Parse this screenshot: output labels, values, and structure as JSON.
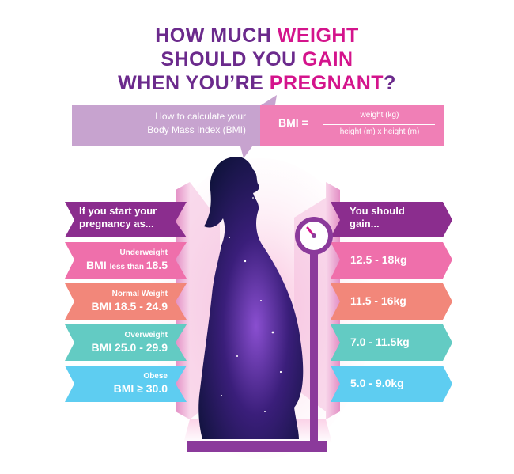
{
  "title": {
    "line1_a": "HOW MUCH ",
    "line1_b": "WEIGHT",
    "line2_a": "SHOULD YOU ",
    "line2_b": "GAIN",
    "line3_a": "WHEN YOU’RE ",
    "line3_b": "PREGNANT",
    "line3_c": "?"
  },
  "calc": {
    "line1": "How to calculate your",
    "line2": "Body Mass Index (BMI)"
  },
  "formula": {
    "label": "BMI =",
    "numerator": "weight (kg)",
    "denominator": "height (m) x height (m)"
  },
  "left_header": {
    "line1": "If you start your",
    "line2": "pregnancy as..."
  },
  "right_header": {
    "line1": "You should",
    "line2": "gain..."
  },
  "rows": [
    {
      "category": "Underweight",
      "range_prefix": "BMI ",
      "range_mid": "less than ",
      "range_suffix": "18.5",
      "gain": "12.5 - 18kg",
      "color": "#ef6fab"
    },
    {
      "category": "Normal Weight",
      "range_prefix": "BMI 18.5 - 24.9",
      "range_mid": "",
      "range_suffix": "",
      "gain": "11.5 - 16kg",
      "color": "#f2877a"
    },
    {
      "category": "Overweight",
      "range_prefix": "BMI 25.0 - 29.9",
      "range_mid": "",
      "range_suffix": "",
      "gain": "7.0 - 11.5kg",
      "color": "#63cbc3"
    },
    {
      "category": "Obese",
      "range_prefix": "BMI ≥ 30.0",
      "range_mid": "",
      "range_suffix": "",
      "gain": "5.0 - 9.0kg",
      "color": "#5ecdf1"
    }
  ],
  "colors": {
    "header_purple": "#8b2d8e",
    "title_purple": "#6b2a8c",
    "title_pink": "#d4148c",
    "scale_purple": "#8b3a9b"
  },
  "icons": [
    "pregnant-silhouette-icon",
    "scale-dial-icon"
  ]
}
